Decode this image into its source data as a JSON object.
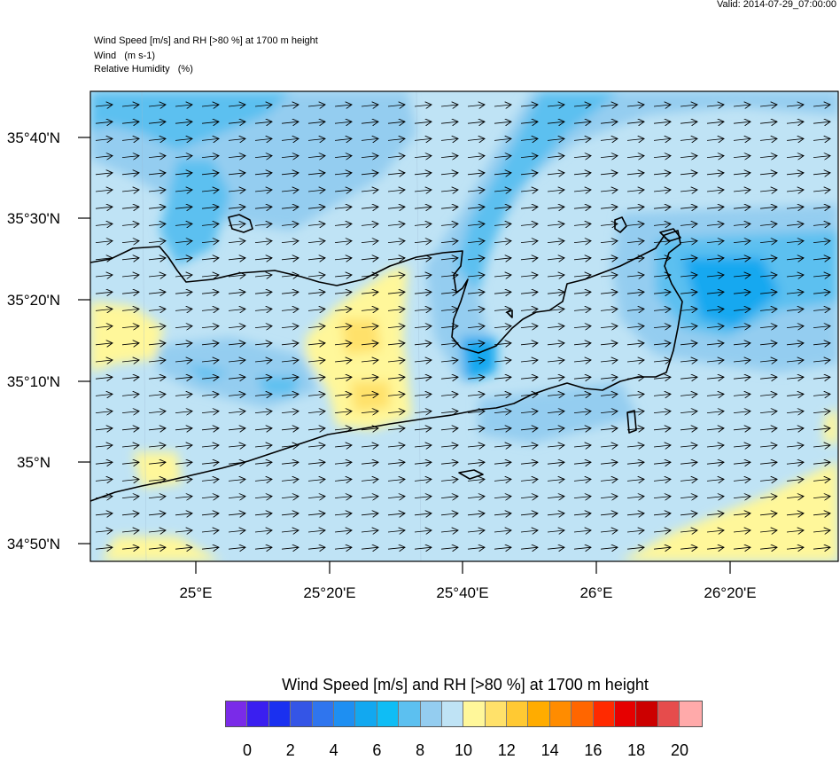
{
  "valid": "Valid: 2014-07-29_07:00:00",
  "header": {
    "line1": "Wind Speed [m/s] and RH [>80 %] at 1700 m height",
    "line2": "Wind   (m s-1)",
    "line3": "Relative Humidity   (%)"
  },
  "axes": {
    "lat_labels": [
      "35°40'N",
      "35°30'N",
      "35°20'N",
      "35°10'N",
      "35°N",
      "34°50'N"
    ],
    "lon_labels": [
      "25°E",
      "25°20'E",
      "25°40'E",
      "26°E",
      "26°20'E"
    ]
  },
  "legend": {
    "title": "Wind Speed [m/s] and RH [>80 %] at 1700 m height",
    "colors": [
      "#7a2be8",
      "#3a1ff0",
      "#1a30f0",
      "#3455e6",
      "#2f75ee",
      "#1e8ff2",
      "#12a8f0",
      "#0fbdf5",
      "#5cc0f0",
      "#94cdf0",
      "#bfe3f5",
      "#fff79a",
      "#ffe16a",
      "#ffc933",
      "#ffac00",
      "#ff8c00",
      "#ff6600",
      "#ff2a00",
      "#e60000",
      "#cc0000",
      "#e64c4c",
      "#ffaaaa"
    ],
    "labels": [
      "0",
      "2",
      "4",
      "6",
      "8",
      "10",
      "12",
      "14",
      "16",
      "18",
      "20"
    ]
  }
}
